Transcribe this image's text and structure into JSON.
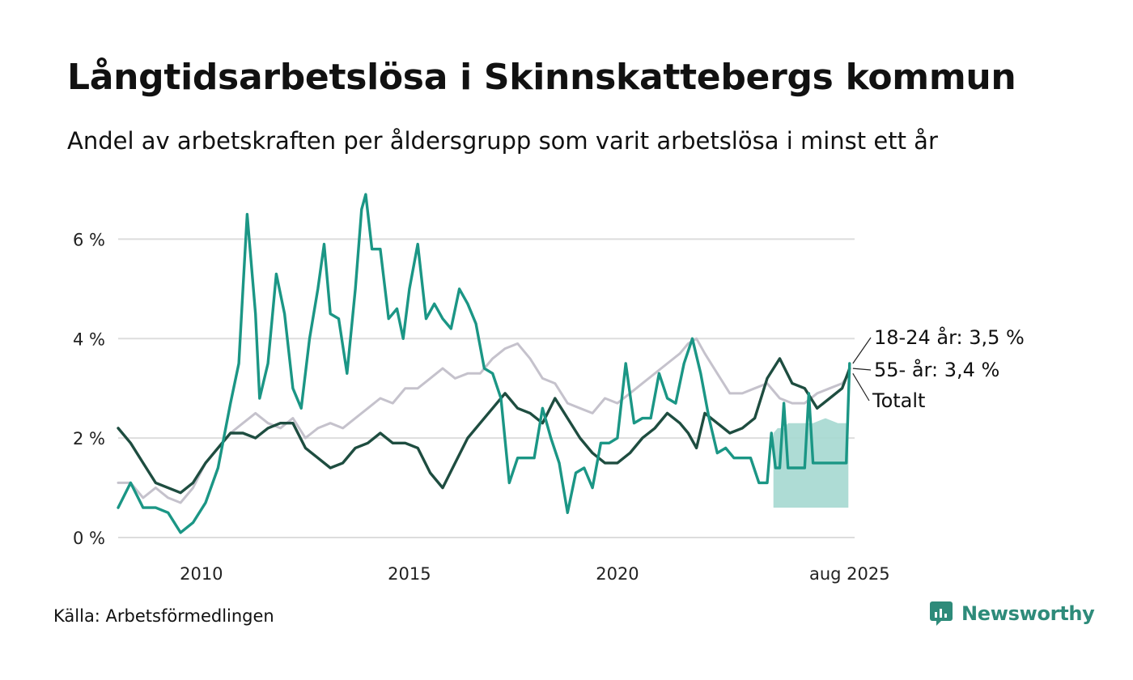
{
  "title": "Långtidsarbetslösa i Skinnskattebergs kommun",
  "subtitle": "Andel av arbetskraften per åldersgrupp som varit arbetslösa i minst ett år",
  "source": "Källa: Arbetsförmedlingen",
  "brand": {
    "name": "Newsworthy",
    "icon": "newsworthy-logo-icon"
  },
  "colors": {
    "young": "#1b9685",
    "old": "#1e4d40",
    "total": "#c5c2cc",
    "band": "#a5d8d0",
    "grid": "#dddddd"
  },
  "chart_data": {
    "type": "line",
    "x_unit": "year (decimal)",
    "xlim": [
      2008.0,
      2025.7
    ],
    "ylim": [
      0,
      7
    ],
    "y_ticks": [
      {
        "value": 0,
        "label": "0 %"
      },
      {
        "value": 2,
        "label": "2 %"
      },
      {
        "value": 4,
        "label": "4 %"
      },
      {
        "value": 6,
        "label": "6 %"
      }
    ],
    "x_ticks": [
      {
        "value": 2010,
        "label": "2010"
      },
      {
        "value": 2015,
        "label": "2015"
      },
      {
        "value": 2020,
        "label": "2020"
      },
      {
        "value": 2025.58,
        "label": "aug 2025"
      }
    ],
    "grid": true,
    "legend": "end-labels",
    "series": [
      {
        "key": "total",
        "name": "Totalt",
        "label": "Totalt",
        "points": [
          [
            2008.0,
            1.1
          ],
          [
            2008.3,
            1.1
          ],
          [
            2008.6,
            0.8
          ],
          [
            2008.9,
            1.0
          ],
          [
            2009.2,
            0.8
          ],
          [
            2009.5,
            0.7
          ],
          [
            2009.8,
            1.0
          ],
          [
            2010.1,
            1.5
          ],
          [
            2010.4,
            1.8
          ],
          [
            2010.7,
            2.1
          ],
          [
            2011.0,
            2.3
          ],
          [
            2011.3,
            2.5
          ],
          [
            2011.6,
            2.3
          ],
          [
            2011.9,
            2.2
          ],
          [
            2012.2,
            2.4
          ],
          [
            2012.5,
            2.0
          ],
          [
            2012.8,
            2.2
          ],
          [
            2013.1,
            2.3
          ],
          [
            2013.4,
            2.2
          ],
          [
            2013.7,
            2.4
          ],
          [
            2014.0,
            2.6
          ],
          [
            2014.3,
            2.8
          ],
          [
            2014.6,
            2.7
          ],
          [
            2014.9,
            3.0
          ],
          [
            2015.2,
            3.0
          ],
          [
            2015.5,
            3.2
          ],
          [
            2015.8,
            3.4
          ],
          [
            2016.1,
            3.2
          ],
          [
            2016.4,
            3.3
          ],
          [
            2016.7,
            3.3
          ],
          [
            2017.0,
            3.6
          ],
          [
            2017.3,
            3.8
          ],
          [
            2017.6,
            3.9
          ],
          [
            2017.9,
            3.6
          ],
          [
            2018.2,
            3.2
          ],
          [
            2018.5,
            3.1
          ],
          [
            2018.8,
            2.7
          ],
          [
            2019.1,
            2.6
          ],
          [
            2019.4,
            2.5
          ],
          [
            2019.7,
            2.8
          ],
          [
            2020.0,
            2.7
          ],
          [
            2020.3,
            2.9
          ],
          [
            2020.6,
            3.1
          ],
          [
            2020.9,
            3.3
          ],
          [
            2021.2,
            3.5
          ],
          [
            2021.5,
            3.7
          ],
          [
            2021.7,
            3.9
          ],
          [
            2021.9,
            4.0
          ],
          [
            2022.1,
            3.7
          ],
          [
            2022.4,
            3.3
          ],
          [
            2022.7,
            2.9
          ],
          [
            2023.0,
            2.9
          ],
          [
            2023.3,
            3.0
          ],
          [
            2023.6,
            3.1
          ],
          [
            2023.9,
            2.8
          ],
          [
            2024.2,
            2.7
          ],
          [
            2024.5,
            2.7
          ],
          [
            2024.8,
            2.9
          ],
          [
            2025.1,
            3.0
          ],
          [
            2025.4,
            3.1
          ],
          [
            2025.58,
            3.3
          ]
        ]
      },
      {
        "key": "old",
        "name": "55- år",
        "label": "55- år: 3,4 %",
        "points": [
          [
            2008.0,
            2.2
          ],
          [
            2008.3,
            1.9
          ],
          [
            2008.6,
            1.5
          ],
          [
            2008.9,
            1.1
          ],
          [
            2009.2,
            1.0
          ],
          [
            2009.5,
            0.9
          ],
          [
            2009.8,
            1.1
          ],
          [
            2010.1,
            1.5
          ],
          [
            2010.4,
            1.8
          ],
          [
            2010.7,
            2.1
          ],
          [
            2011.0,
            2.1
          ],
          [
            2011.3,
            2.0
          ],
          [
            2011.6,
            2.2
          ],
          [
            2011.9,
            2.3
          ],
          [
            2012.2,
            2.3
          ],
          [
            2012.5,
            1.8
          ],
          [
            2012.8,
            1.6
          ],
          [
            2013.1,
            1.4
          ],
          [
            2013.4,
            1.5
          ],
          [
            2013.7,
            1.8
          ],
          [
            2014.0,
            1.9
          ],
          [
            2014.3,
            2.1
          ],
          [
            2014.6,
            1.9
          ],
          [
            2014.9,
            1.9
          ],
          [
            2015.2,
            1.8
          ],
          [
            2015.5,
            1.3
          ],
          [
            2015.8,
            1.0
          ],
          [
            2016.1,
            1.5
          ],
          [
            2016.4,
            2.0
          ],
          [
            2016.7,
            2.3
          ],
          [
            2017.0,
            2.6
          ],
          [
            2017.3,
            2.9
          ],
          [
            2017.6,
            2.6
          ],
          [
            2017.9,
            2.5
          ],
          [
            2018.2,
            2.3
          ],
          [
            2018.5,
            2.8
          ],
          [
            2018.8,
            2.4
          ],
          [
            2019.1,
            2.0
          ],
          [
            2019.4,
            1.7
          ],
          [
            2019.7,
            1.5
          ],
          [
            2020.0,
            1.5
          ],
          [
            2020.3,
            1.7
          ],
          [
            2020.6,
            2.0
          ],
          [
            2020.9,
            2.2
          ],
          [
            2021.2,
            2.5
          ],
          [
            2021.5,
            2.3
          ],
          [
            2021.7,
            2.1
          ],
          [
            2021.9,
            1.8
          ],
          [
            2022.1,
            2.5
          ],
          [
            2022.4,
            2.3
          ],
          [
            2022.7,
            2.1
          ],
          [
            2023.0,
            2.2
          ],
          [
            2023.3,
            2.4
          ],
          [
            2023.6,
            3.2
          ],
          [
            2023.9,
            3.6
          ],
          [
            2024.2,
            3.1
          ],
          [
            2024.5,
            3.0
          ],
          [
            2024.8,
            2.6
          ],
          [
            2025.1,
            2.8
          ],
          [
            2025.4,
            3.0
          ],
          [
            2025.58,
            3.4
          ]
        ]
      },
      {
        "key": "young",
        "name": "18-24 år",
        "label": "18-24 år: 3,5 %",
        "points": [
          [
            2008.0,
            0.6
          ],
          [
            2008.3,
            1.1
          ],
          [
            2008.6,
            0.6
          ],
          [
            2008.9,
            0.6
          ],
          [
            2009.2,
            0.5
          ],
          [
            2009.5,
            0.1
          ],
          [
            2009.8,
            0.3
          ],
          [
            2010.1,
            0.7
          ],
          [
            2010.4,
            1.4
          ],
          [
            2010.7,
            2.7
          ],
          [
            2010.9,
            3.5
          ],
          [
            2011.0,
            5.0
          ],
          [
            2011.1,
            6.5
          ],
          [
            2011.3,
            4.5
          ],
          [
            2011.4,
            2.8
          ],
          [
            2011.6,
            3.5
          ],
          [
            2011.8,
            5.3
          ],
          [
            2012.0,
            4.5
          ],
          [
            2012.2,
            3.0
          ],
          [
            2012.4,
            2.6
          ],
          [
            2012.6,
            4.0
          ],
          [
            2012.8,
            5.0
          ],
          [
            2012.95,
            5.9
          ],
          [
            2013.1,
            4.5
          ],
          [
            2013.3,
            4.4
          ],
          [
            2013.5,
            3.3
          ],
          [
            2013.7,
            5.0
          ],
          [
            2013.85,
            6.6
          ],
          [
            2013.95,
            6.9
          ],
          [
            2014.1,
            5.8
          ],
          [
            2014.3,
            5.8
          ],
          [
            2014.5,
            4.4
          ],
          [
            2014.7,
            4.6
          ],
          [
            2014.85,
            4.0
          ],
          [
            2015.0,
            5.0
          ],
          [
            2015.2,
            5.9
          ],
          [
            2015.4,
            4.4
          ],
          [
            2015.6,
            4.7
          ],
          [
            2015.8,
            4.4
          ],
          [
            2016.0,
            4.2
          ],
          [
            2016.2,
            5.0
          ],
          [
            2016.4,
            4.7
          ],
          [
            2016.6,
            4.3
          ],
          [
            2016.8,
            3.4
          ],
          [
            2017.0,
            3.3
          ],
          [
            2017.2,
            2.8
          ],
          [
            2017.4,
            1.1
          ],
          [
            2017.6,
            1.6
          ],
          [
            2017.8,
            1.6
          ],
          [
            2018.0,
            1.6
          ],
          [
            2018.2,
            2.6
          ],
          [
            2018.4,
            2.0
          ],
          [
            2018.6,
            1.5
          ],
          [
            2018.8,
            0.5
          ],
          [
            2019.0,
            1.3
          ],
          [
            2019.2,
            1.4
          ],
          [
            2019.4,
            1.0
          ],
          [
            2019.6,
            1.9
          ],
          [
            2019.8,
            1.9
          ],
          [
            2020.0,
            2.0
          ],
          [
            2020.2,
            3.5
          ],
          [
            2020.4,
            2.3
          ],
          [
            2020.6,
            2.4
          ],
          [
            2020.8,
            2.4
          ],
          [
            2021.0,
            3.3
          ],
          [
            2021.2,
            2.8
          ],
          [
            2021.4,
            2.7
          ],
          [
            2021.6,
            3.5
          ],
          [
            2021.8,
            4.0
          ],
          [
            2022.0,
            3.3
          ],
          [
            2022.2,
            2.4
          ],
          [
            2022.4,
            1.7
          ],
          [
            2022.6,
            1.8
          ],
          [
            2022.8,
            1.6
          ],
          [
            2023.0,
            1.6
          ],
          [
            2023.2,
            1.6
          ],
          [
            2023.4,
            1.1
          ],
          [
            2023.6,
            1.1
          ],
          [
            2023.7,
            2.1
          ],
          [
            2023.8,
            1.4
          ],
          [
            2023.9,
            1.4
          ],
          [
            2024.0,
            2.7
          ],
          [
            2024.1,
            1.4
          ],
          [
            2024.3,
            1.4
          ],
          [
            2024.5,
            1.4
          ],
          [
            2024.6,
            2.9
          ],
          [
            2024.7,
            1.5
          ],
          [
            2025.0,
            1.5
          ],
          [
            2025.2,
            1.5
          ],
          [
            2025.5,
            1.5
          ],
          [
            2025.58,
            3.5
          ]
        ]
      }
    ],
    "band": {
      "series": "18-24 år",
      "points": [
        [
          2023.75,
          0.6,
          2.1
        ],
        [
          2023.85,
          0.6,
          2.2
        ],
        [
          2024.0,
          0.6,
          2.2
        ],
        [
          2024.1,
          0.6,
          2.3
        ],
        [
          2024.3,
          0.6,
          2.3
        ],
        [
          2024.5,
          0.6,
          2.3
        ],
        [
          2024.7,
          0.6,
          2.3
        ],
        [
          2025.0,
          0.6,
          2.4
        ],
        [
          2025.3,
          0.6,
          2.3
        ],
        [
          2025.55,
          0.6,
          2.3
        ]
      ]
    }
  }
}
